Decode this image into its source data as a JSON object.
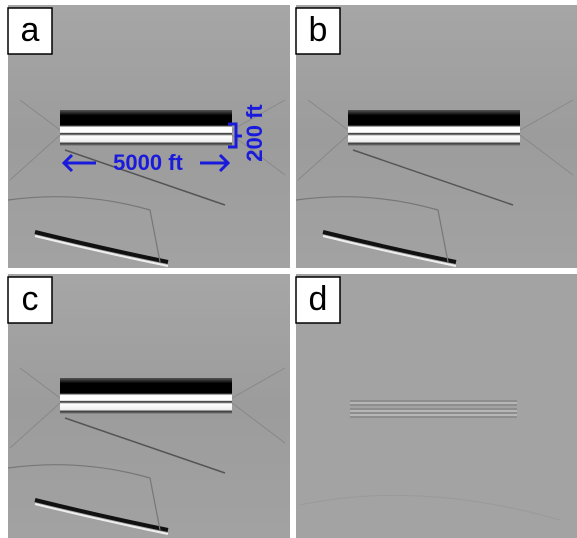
{
  "panels": [
    {
      "label": "a"
    },
    {
      "label": "b"
    },
    {
      "label": "c"
    },
    {
      "label": "d"
    }
  ],
  "annotations": {
    "width": "5000 ft",
    "height": "200 ft"
  }
}
